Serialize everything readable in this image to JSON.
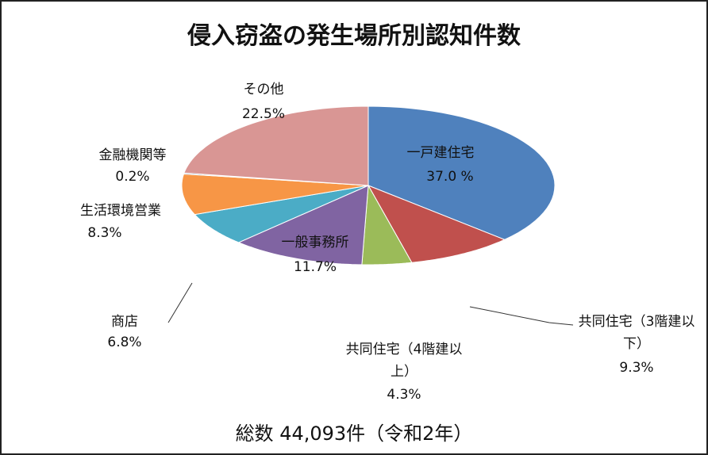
{
  "chart_data": {
    "type": "pie3d",
    "title": "侵入窃盗の発生場所別認知件数",
    "categories": [
      "一戸建住宅",
      "共同住宅（3階建以下）",
      "共同住宅（4階建以上）",
      "一般事務所",
      "商店",
      "生活環境営業",
      "金融機関等",
      "その他"
    ],
    "values": [
      37.0,
      9.3,
      4.3,
      11.7,
      6.8,
      8.3,
      0.2,
      22.5
    ],
    "value_labels": [
      "37.0 %",
      "9.3%",
      "4.3%",
      "11.7%",
      "6.8%",
      "8.3%",
      "0.2%",
      "22.5%"
    ],
    "colors": [
      "#4f81bd",
      "#c0504d",
      "#9bbb59",
      "#8064a2",
      "#4bacc6",
      "#f79646",
      "#3b5f8a",
      "#d99694"
    ],
    "total": "総数 44,093件（令和2年）"
  }
}
